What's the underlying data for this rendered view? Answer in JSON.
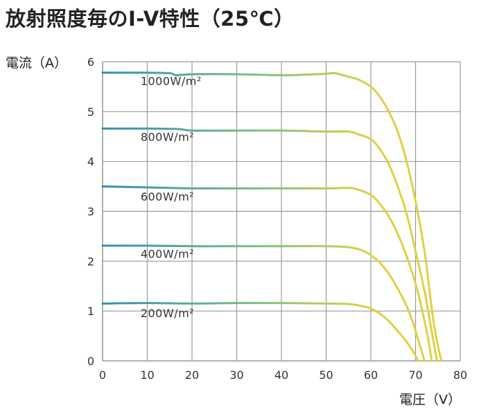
{
  "chart_data": {
    "type": "line",
    "title": "放射照度毎のI-V特性（25℃）",
    "xlabel": "電圧（V）",
    "ylabel": "電流（A）",
    "xlim": [
      0,
      80
    ],
    "ylim": [
      0,
      6
    ],
    "xticks": [
      "0",
      "10",
      "20",
      "30",
      "40",
      "50",
      "60",
      "70",
      "80"
    ],
    "yticks": [
      "0",
      "1",
      "2",
      "3",
      "4",
      "5",
      "6"
    ],
    "grid": true,
    "legend": "inline labels",
    "colors": {
      "start": "#2e8fb5",
      "mid": "#7ec281",
      "end": "#e0d043",
      "grid": "#999999"
    },
    "series": [
      {
        "name": "1000W/m²",
        "label_at": [
          8.5,
          5.62
        ],
        "points": [
          [
            0,
            5.78
          ],
          [
            10,
            5.78
          ],
          [
            15,
            5.77
          ],
          [
            16.5,
            5.73
          ],
          [
            20,
            5.75
          ],
          [
            30,
            5.75
          ],
          [
            40,
            5.73
          ],
          [
            45,
            5.74
          ],
          [
            50,
            5.76
          ],
          [
            52,
            5.77
          ],
          [
            55,
            5.7
          ],
          [
            57,
            5.65
          ],
          [
            60,
            5.5
          ],
          [
            62,
            5.3
          ],
          [
            64,
            5.0
          ],
          [
            66,
            4.6
          ],
          [
            68,
            4.0
          ],
          [
            70,
            3.2
          ],
          [
            72,
            2.2
          ],
          [
            73,
            1.5
          ],
          [
            74,
            0.8
          ],
          [
            75,
            0.3
          ],
          [
            75.8,
            0
          ]
        ]
      },
      {
        "name": "800W/m²",
        "label_at": [
          8.5,
          4.5
        ],
        "points": [
          [
            0,
            4.66
          ],
          [
            10,
            4.66
          ],
          [
            17,
            4.65
          ],
          [
            20,
            4.62
          ],
          [
            30,
            4.62
          ],
          [
            40,
            4.62
          ],
          [
            50,
            4.6
          ],
          [
            55,
            4.6
          ],
          [
            57,
            4.55
          ],
          [
            60,
            4.45
          ],
          [
            62,
            4.25
          ],
          [
            64,
            3.95
          ],
          [
            66,
            3.5
          ],
          [
            68,
            2.95
          ],
          [
            70,
            2.2
          ],
          [
            72,
            1.4
          ],
          [
            73,
            0.9
          ],
          [
            74,
            0.4
          ],
          [
            74.8,
            0
          ]
        ]
      },
      {
        "name": "600W/m²",
        "label_at": [
          8.5,
          3.3
        ],
        "points": [
          [
            0,
            3.5
          ],
          [
            10,
            3.48
          ],
          [
            20,
            3.46
          ],
          [
            30,
            3.46
          ],
          [
            40,
            3.46
          ],
          [
            50,
            3.46
          ],
          [
            55,
            3.47
          ],
          [
            57,
            3.44
          ],
          [
            60,
            3.33
          ],
          [
            62,
            3.15
          ],
          [
            64,
            2.9
          ],
          [
            66,
            2.55
          ],
          [
            68,
            2.1
          ],
          [
            70,
            1.55
          ],
          [
            71,
            1.2
          ],
          [
            72,
            0.8
          ],
          [
            73,
            0.35
          ],
          [
            73.6,
            0
          ]
        ]
      },
      {
        "name": "400W/m²",
        "label_at": [
          8.5,
          2.15
        ],
        "points": [
          [
            0,
            2.31
          ],
          [
            10,
            2.31
          ],
          [
            20,
            2.3
          ],
          [
            30,
            2.3
          ],
          [
            40,
            2.3
          ],
          [
            50,
            2.3
          ],
          [
            55,
            2.28
          ],
          [
            58,
            2.22
          ],
          [
            60,
            2.12
          ],
          [
            62,
            1.97
          ],
          [
            64,
            1.75
          ],
          [
            66,
            1.45
          ],
          [
            68,
            1.1
          ],
          [
            69.5,
            0.75
          ],
          [
            70.5,
            0.45
          ],
          [
            71.5,
            0.15
          ],
          [
            72,
            0
          ]
        ]
      },
      {
        "name": "200W/m²",
        "label_at": [
          8.5,
          0.96
        ],
        "points": [
          [
            0,
            1.15
          ],
          [
            10,
            1.16
          ],
          [
            20,
            1.15
          ],
          [
            30,
            1.16
          ],
          [
            40,
            1.16
          ],
          [
            50,
            1.15
          ],
          [
            55,
            1.14
          ],
          [
            58,
            1.1
          ],
          [
            60,
            1.05
          ],
          [
            62,
            0.95
          ],
          [
            64,
            0.8
          ],
          [
            66,
            0.6
          ],
          [
            68,
            0.38
          ],
          [
            69,
            0.25
          ],
          [
            70,
            0.1
          ],
          [
            70.6,
            0
          ]
        ]
      }
    ]
  }
}
